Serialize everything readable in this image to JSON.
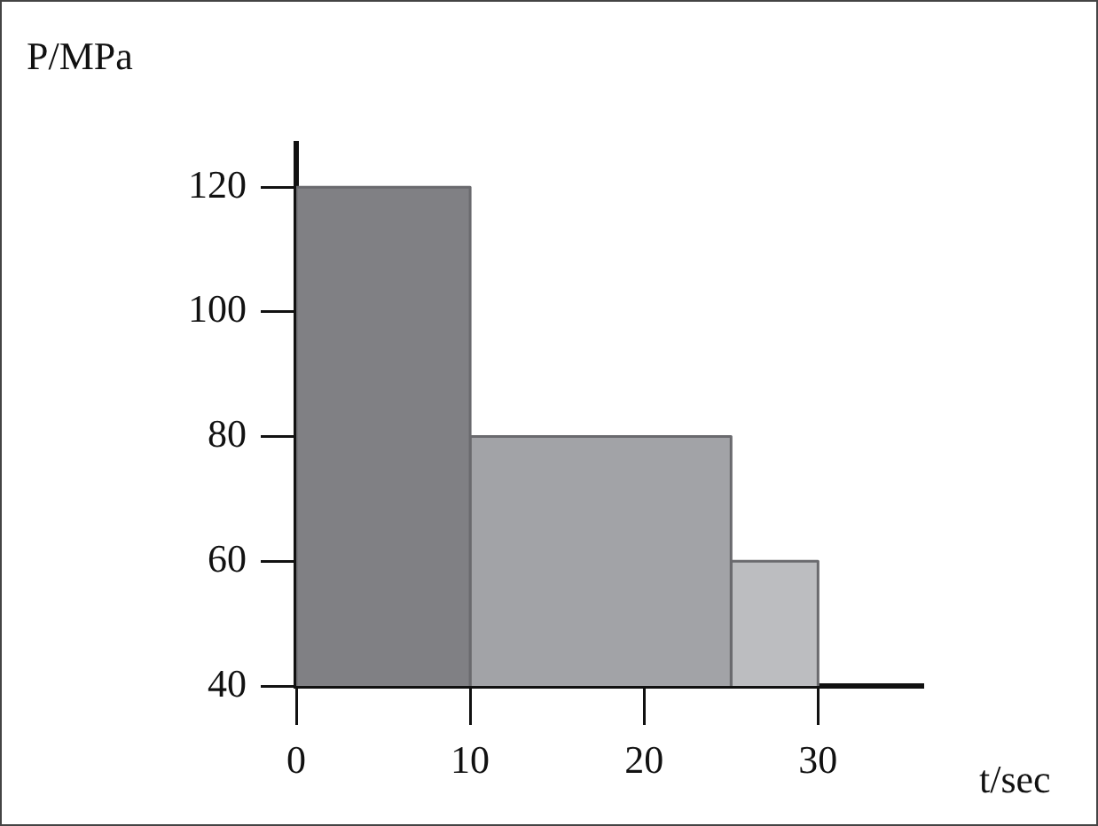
{
  "chart_data": {
    "type": "histogram",
    "xlabel": "t/sec",
    "ylabel": "P/MPa",
    "bins": [
      0,
      10,
      25,
      30
    ],
    "values": [
      120,
      80,
      60
    ],
    "colors": [
      "#808084",
      "#a2a3a7",
      "#bcbdc0"
    ],
    "xlim": [
      0,
      36
    ],
    "ylim": [
      40,
      127
    ],
    "xticks": [
      0,
      10,
      20,
      30
    ],
    "yticks": [
      40,
      60,
      80,
      100,
      120
    ],
    "grid": false,
    "legend": false
  }
}
